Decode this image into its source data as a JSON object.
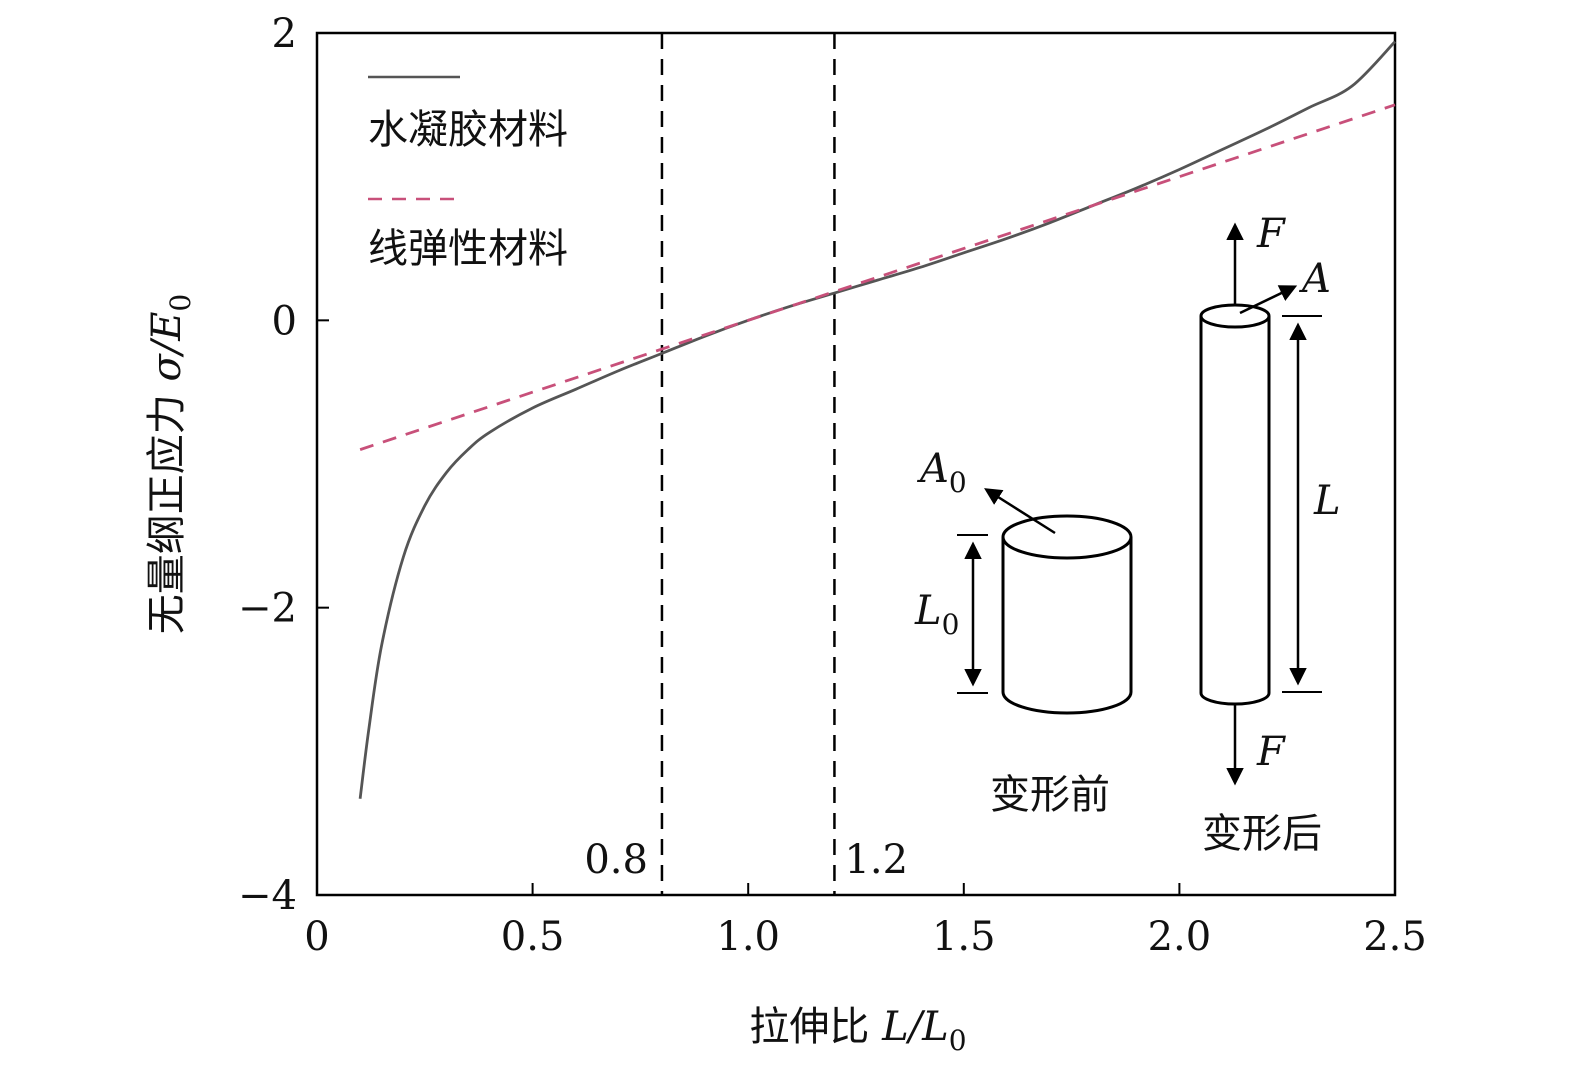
{
  "chart_data": {
    "type": "line",
    "xlabel": {
      "text": "拉伸比 ",
      "var": "L/L",
      "sub": "0"
    },
    "ylabel": {
      "text": "无量纲正应力 ",
      "var": "σ/E",
      "sub": "0"
    },
    "xlim": [
      0,
      2.5
    ],
    "ylim": [
      -4,
      2
    ],
    "x_ticks": [
      0,
      0.5,
      1.0,
      1.5,
      2.0,
      2.5
    ],
    "x_tick_labels": [
      "0",
      "0.5",
      "1.0",
      "1.5",
      "2.0",
      "2.5"
    ],
    "y_ticks": [
      -4,
      -2,
      0,
      2
    ],
    "y_tick_labels": [
      "−4",
      "−2",
      "0",
      "2"
    ],
    "grid": false,
    "legend_placement": "top-left",
    "series": [
      {
        "name": "水凝胶材料",
        "style": "solid",
        "color": "#555555",
        "x": [
          0.1,
          0.12,
          0.15,
          0.2,
          0.25,
          0.3,
          0.35,
          0.4,
          0.5,
          0.6,
          0.7,
          0.8,
          0.9,
          1.0,
          1.1,
          1.2,
          1.3,
          1.4,
          1.5,
          1.6,
          1.7,
          1.8,
          1.9,
          2.0,
          2.1,
          2.2,
          2.3,
          2.4,
          2.5
        ],
        "y": [
          -3.33,
          -2.85,
          -2.26,
          -1.65,
          -1.29,
          -1.06,
          -0.9,
          -0.78,
          -0.61,
          -0.48,
          -0.35,
          -0.23,
          -0.11,
          0.0,
          0.1,
          0.19,
          0.28,
          0.37,
          0.47,
          0.57,
          0.68,
          0.8,
          0.92,
          1.05,
          1.19,
          1.33,
          1.48,
          1.63,
          1.94
        ]
      },
      {
        "name": "线弹性材料",
        "style": "dashed",
        "color": "#c8507a",
        "x": [
          0.1,
          2.5
        ],
        "y": [
          -0.9,
          1.5
        ]
      }
    ],
    "vlines": [
      {
        "x": 0.8,
        "label": "0.8"
      },
      {
        "x": 1.2,
        "label": "1.2"
      }
    ]
  },
  "inset": {
    "before_label": "变形前",
    "after_label": "变形后",
    "A0_var": "A",
    "A0_sub": "0",
    "L0_var": "L",
    "L0_sub": "0",
    "A_var": "A",
    "L_var": "L",
    "F_var": "F"
  }
}
